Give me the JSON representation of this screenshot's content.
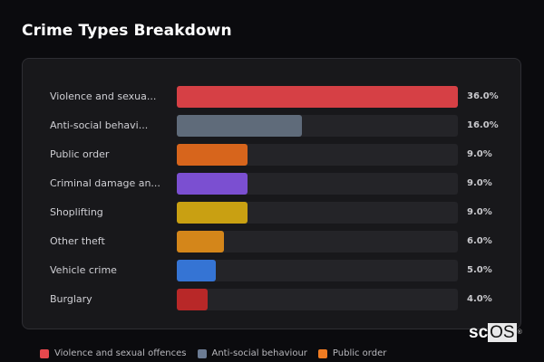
{
  "title": "Crime Types Breakdown",
  "logo": {
    "text": "sc",
    "highlight": "OS",
    "mark": "®"
  },
  "chart_data": {
    "type": "bar",
    "orientation": "horizontal",
    "title": "Crime Types Breakdown",
    "categories": [
      "Violence and sexual offences",
      "Anti-social behaviour",
      "Public order",
      "Criminal damage and arson",
      "Shoplifting",
      "Other theft",
      "Vehicle crime",
      "Burglary"
    ],
    "display_labels": [
      "Violence and sexua...",
      "Anti-social behavi...",
      "Public order",
      "Criminal damage an...",
      "Shoplifting",
      "Other theft",
      "Vehicle crime",
      "Burglary"
    ],
    "values": [
      36.0,
      16.0,
      9.0,
      9.0,
      9.0,
      6.0,
      5.0,
      4.0
    ],
    "value_labels": [
      "36.0%",
      "16.0%",
      "9.0%",
      "9.0%",
      "9.0%",
      "6.0%",
      "5.0%",
      "4.0%"
    ],
    "colors": [
      "#d64045",
      "#5f6b7a",
      "#d7651c",
      "#7b4fd1",
      "#c9a012",
      "#d4861a",
      "#3574d4",
      "#b82828"
    ],
    "xlabel": "",
    "ylabel": "",
    "xlim": [
      0,
      36
    ],
    "grid": false,
    "legend": {
      "position": "bottom",
      "entries": [
        "Violence and sexual offences",
        "Anti-social behaviour",
        "Public order"
      ]
    }
  },
  "legend": [
    {
      "label": "Violence and sexual offences",
      "color": "#e5484d"
    },
    {
      "label": "Anti-social behaviour",
      "color": "#6b7b93"
    },
    {
      "label": "Public order",
      "color": "#f07c22"
    }
  ]
}
